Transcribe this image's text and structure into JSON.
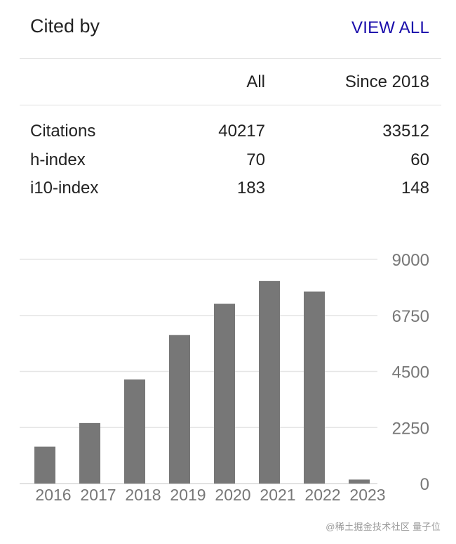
{
  "header": {
    "title": "Cited by",
    "view_all_label": "VIEW ALL"
  },
  "stats": {
    "columns": [
      "",
      "All",
      "Since 2018"
    ],
    "rows": [
      {
        "label": "Citations",
        "all": "40217",
        "since": "33512"
      },
      {
        "label": "h-index",
        "all": "70",
        "since": "60"
      },
      {
        "label": "i10-index",
        "all": "183",
        "since": "148"
      }
    ]
  },
  "colors": {
    "link": "#1a0dab",
    "bar": "#777777",
    "grid": "#e6e6e6",
    "tick_text": "#777777"
  },
  "chart_data": {
    "type": "bar",
    "categories": [
      "2016",
      "2017",
      "2018",
      "2019",
      "2020",
      "2021",
      "2022",
      "2023"
    ],
    "values": [
      1480,
      2430,
      4180,
      5960,
      7220,
      8130,
      7710,
      160
    ],
    "y_ticks": [
      0,
      2250,
      4500,
      6750,
      9000
    ],
    "ylim": [
      0,
      9000
    ],
    "grid": true,
    "y_axis_side": "right"
  },
  "watermark": "@稀土掘金技术社区 量子位"
}
